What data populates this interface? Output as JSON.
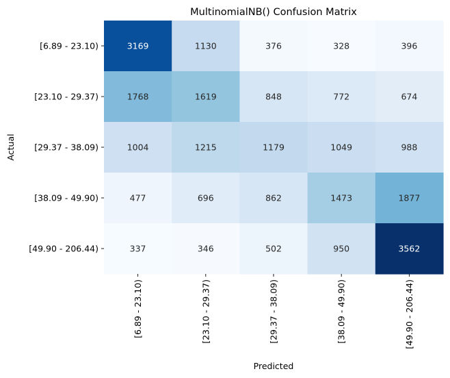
{
  "chart_data": {
    "type": "heatmap",
    "title": "MultinomialNB() Confusion Matrix",
    "xlabel": "Predicted",
    "ylabel": "Actual",
    "x_categories": [
      "[6.89 - 23.10)",
      "[23.10 - 29.37)",
      "[29.37 - 38.09)",
      "[38.09 - 49.90)",
      "[49.90 - 206.44)"
    ],
    "y_categories": [
      "[6.89 - 23.10)",
      "[23.10 - 29.37)",
      "[29.37 - 38.09)",
      "[38.09 - 49.90)",
      "[49.90 - 206.44)"
    ],
    "values": [
      [
        3169,
        1130,
        376,
        328,
        396
      ],
      [
        1768,
        1619,
        848,
        772,
        674
      ],
      [
        1004,
        1215,
        1179,
        1049,
        988
      ],
      [
        477,
        696,
        862,
        1473,
        1877
      ],
      [
        337,
        346,
        502,
        950,
        3562
      ]
    ],
    "colormap": "Blues",
    "colorbar": false
  }
}
